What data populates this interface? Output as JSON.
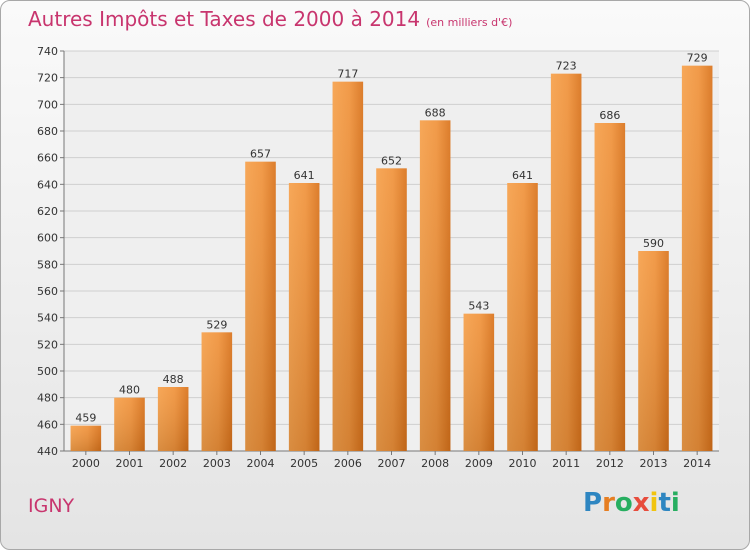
{
  "chart_data": {
    "type": "bar",
    "title": "Autres Impôts et Taxes de 2000 à 2014",
    "subtitle": "(en milliers d'€)",
    "categories": [
      "2000",
      "2001",
      "2002",
      "2003",
      "2004",
      "2005",
      "2006",
      "2007",
      "2008",
      "2009",
      "2010",
      "2011",
      "2012",
      "2013",
      "2014"
    ],
    "values": [
      459,
      480,
      488,
      529,
      657,
      641,
      717,
      652,
      688,
      543,
      641,
      723,
      686,
      590,
      729
    ],
    "ylim": [
      440,
      740
    ],
    "yticks": [
      440,
      460,
      480,
      500,
      520,
      540,
      560,
      580,
      600,
      620,
      640,
      660,
      680,
      700,
      720,
      740
    ],
    "grid": true,
    "bar_color": "#e8801e"
  },
  "footer": {
    "city": "IGNY",
    "logo_letters": [
      "P",
      "r",
      "o",
      "x",
      "i",
      "t",
      "i"
    ],
    "logo_colors": [
      "#2e86c1",
      "#e67e22",
      "#27ae60",
      "#e74c3c",
      "#f1c40f",
      "#2e86c1",
      "#27ae60"
    ]
  }
}
